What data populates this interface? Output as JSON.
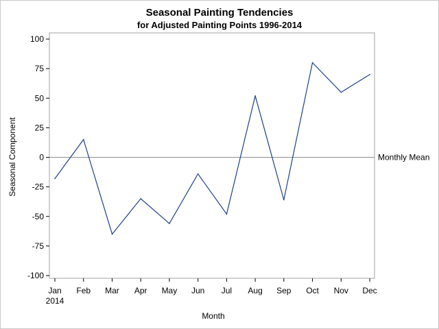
{
  "chart_data": {
    "type": "line",
    "title": "Seasonal Painting Tendencies",
    "subtitle": "for Adjusted Painting Points 1996-2014",
    "xlabel": "Month",
    "ylabel": "Seasonal Component",
    "categories": [
      "Jan",
      "Feb",
      "Mar",
      "Apr",
      "May",
      "Jun",
      "Jul",
      "Aug",
      "Sep",
      "Oct",
      "Nov",
      "Dec"
    ],
    "category_sublabel": "2014",
    "values": [
      -18,
      15,
      -65,
      -35,
      -56,
      -14,
      -48,
      52,
      -36,
      80,
      55,
      70
    ],
    "ylim": [
      -100,
      100
    ],
    "yticks": [
      100,
      75,
      50,
      25,
      0,
      -25,
      -50,
      -75,
      -100
    ],
    "ytick_labels": [
      "100",
      "75",
      "50",
      "25",
      "0",
      "-25",
      "-50",
      "-75",
      "-100"
    ],
    "reference_line": {
      "value": 0,
      "label": "Monthly Mean"
    },
    "line_color": "#1f3f8c",
    "reference_color": "#8c8c8c",
    "grid": false
  }
}
